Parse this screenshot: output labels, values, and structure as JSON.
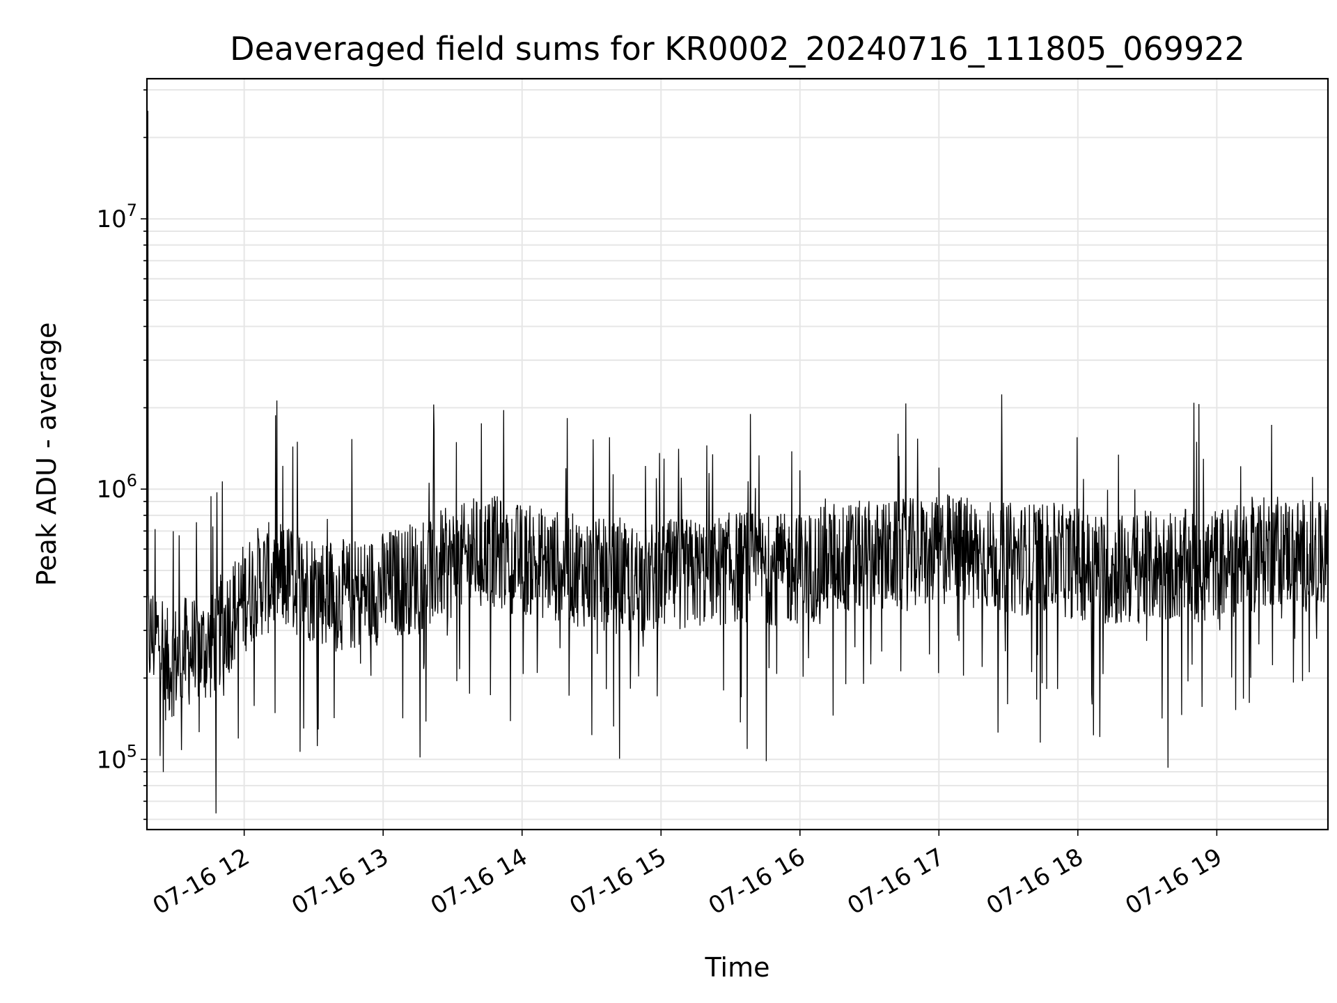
{
  "chart_data": {
    "type": "line",
    "title": "Deaveraged field sums for KR0002_20240716_111805_069922",
    "xlabel": "Time",
    "ylabel": "Peak ADU - average",
    "x_tick_labels": [
      "07-16 12",
      "07-16 13",
      "07-16 14",
      "07-16 15",
      "07-16 16",
      "07-16 17",
      "07-16 18",
      "07-16 19"
    ],
    "y_tick_labels": [
      {
        "base": "10",
        "exp": "5",
        "value": 100000
      },
      {
        "base": "10",
        "exp": "6",
        "value": 1000000
      },
      {
        "base": "10",
        "exp": "7",
        "value": 10000000
      }
    ],
    "yscale": "log",
    "ylim": [
      55000,
      33000000
    ],
    "xlim": [
      "2024-07-16 11:18",
      "2024-07-16 19:48"
    ],
    "grid": true,
    "line_color": "#000000",
    "grid_color": "#e6e6e6",
    "series": [
      {
        "x": [
          "2024-07-16 11:18",
          "2024-07-16 11:25",
          "2024-07-16 11:35",
          "2024-07-16 11:45",
          "2024-07-16 11:55",
          "2024-07-16 12:05",
          "2024-07-16 12:15",
          "2024-07-16 12:25",
          "2024-07-16 12:35",
          "2024-07-16 12:45",
          "2024-07-16 12:55",
          "2024-07-16 13:05",
          "2024-07-16 13:15",
          "2024-07-16 13:25",
          "2024-07-16 13:35",
          "2024-07-16 13:45",
          "2024-07-16 13:55",
          "2024-07-16 14:05",
          "2024-07-16 14:15",
          "2024-07-16 14:25",
          "2024-07-16 14:35",
          "2024-07-16 14:45",
          "2024-07-16 14:55",
          "2024-07-16 15:05",
          "2024-07-16 15:15",
          "2024-07-16 15:25",
          "2024-07-16 15:35",
          "2024-07-16 15:45",
          "2024-07-16 15:55",
          "2024-07-16 16:05",
          "2024-07-16 16:15",
          "2024-07-16 16:25",
          "2024-07-16 16:35",
          "2024-07-16 16:45",
          "2024-07-16 16:55",
          "2024-07-16 17:05",
          "2024-07-16 17:15",
          "2024-07-16 17:25",
          "2024-07-16 17:35",
          "2024-07-16 17:45",
          "2024-07-16 17:55",
          "2024-07-16 18:05",
          "2024-07-16 18:15",
          "2024-07-16 18:25",
          "2024-07-16 18:35",
          "2024-07-16 18:45",
          "2024-07-16 18:55",
          "2024-07-16 19:05",
          "2024-07-16 19:15",
          "2024-07-16 19:25",
          "2024-07-16 19:35",
          "2024-07-16 19:45"
        ],
        "y": [
          25000000,
          220000,
          250000,
          260000,
          350000,
          450000,
          480000,
          450000,
          420000,
          400000,
          420000,
          450000,
          480000,
          520000,
          550000,
          600000,
          560000,
          540000,
          520000,
          500000,
          480000,
          460000,
          470000,
          480000,
          490000,
          500000,
          520000,
          510000,
          500000,
          520000,
          550000,
          560000,
          560000,
          570000,
          580000,
          600000,
          580000,
          560000,
          550000,
          560000,
          540000,
          520000,
          500000,
          510000,
          520000,
          520000,
          520000,
          540000,
          560000,
          600000,
          580000,
          550000
        ]
      }
    ]
  }
}
